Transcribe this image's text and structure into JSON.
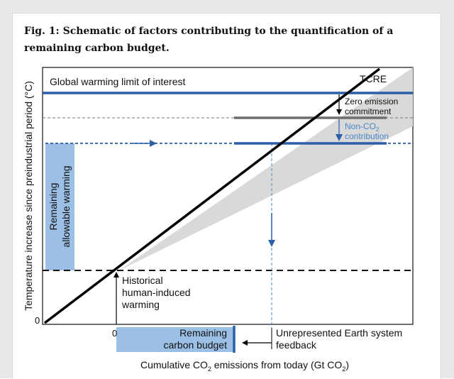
{
  "caption": "Fig. 1: Schematic of factors contributing to the quantification of a remaining carbon budget.",
  "colors": {
    "blue_line": "#2a5fa8",
    "blue_fill": "#9cbfe6",
    "blue_text": "#4a86c8",
    "grey_cone": "#d9d9d9",
    "grey_line": "#6f6f6f",
    "black": "#000000",
    "frame_bg": "#e9e9e9"
  },
  "labels": {
    "global_limit": "Global warming limit of interest",
    "tcre": "TCRE",
    "zero_emission_1": "Zero emission",
    "zero_emission_2": "commitment",
    "non_co2_1": "Non-CO",
    "non_co2_sub": "2",
    "non_co2_2": "contribution",
    "remaining_warming_1": "Remaining",
    "remaining_warming_2": "allowable warming",
    "historical_1": "Historical",
    "historical_2": "human-induced",
    "historical_3": "warming",
    "remaining_budget_1": "Remaining",
    "remaining_budget_2": "carbon budget",
    "unrepresented_1": "Unrepresented Earth system",
    "unrepresented_2": "feedback",
    "y_axis": "Temperature increase since preindustrial period (°C)",
    "x_axis_pre": "Cumulative CO",
    "x_axis_sub1": "2",
    "x_axis_mid": " emissions from today (Gt CO",
    "x_axis_sub2": "2",
    "x_axis_post": ")",
    "x_zero": "0",
    "y_zero": "0"
  }
}
